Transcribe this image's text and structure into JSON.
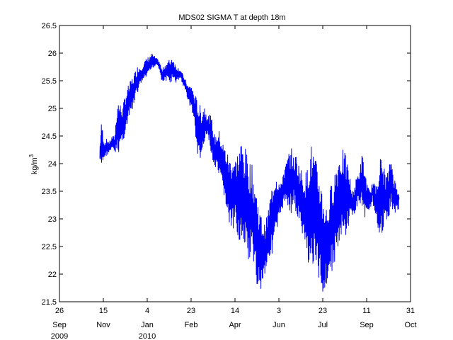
{
  "chart_data": {
    "type": "line",
    "title": "MDS02 SIGMA T at depth 18m",
    "ylabel_base": "kg/m",
    "ylabel_sup": "3",
    "xlabel": "",
    "ylim": [
      21.5,
      26.5
    ],
    "xlim": [
      "2009-09-26",
      "2010-10-31"
    ],
    "yticks": [
      21.5,
      22,
      22.5,
      23,
      23.5,
      24,
      24.5,
      25,
      25.5,
      26,
      26.5
    ],
    "ytick_labels": [
      "21.5",
      "22",
      "22.5",
      "23",
      "23.5",
      "24",
      "24.5",
      "25",
      "25.5",
      "26",
      "26.5"
    ],
    "xticks": [
      {
        "date": "2009-09-26",
        "day": "26",
        "month": "Sep",
        "year": "2009"
      },
      {
        "date": "2009-11-15",
        "day": "15",
        "month": "Nov",
        "year": ""
      },
      {
        "date": "2010-01-04",
        "day": "4",
        "month": "Jan",
        "year": "2010"
      },
      {
        "date": "2010-02-23",
        "day": "23",
        "month": "Feb",
        "year": ""
      },
      {
        "date": "2010-04-14",
        "day": "14",
        "month": "Apr",
        "year": ""
      },
      {
        "date": "2010-06-03",
        "day": "3",
        "month": "Jun",
        "year": ""
      },
      {
        "date": "2010-07-23",
        "day": "23",
        "month": "Jul",
        "year": ""
      },
      {
        "date": "2010-09-11",
        "day": "11",
        "month": "Sep",
        "year": ""
      },
      {
        "date": "2010-10-31",
        "day": "31",
        "month": "Oct",
        "year": ""
      }
    ],
    "grid": false,
    "legend": "none",
    "series_color": "#0000ff",
    "series": [
      {
        "x": [
          "2009-11-11",
          "2009-11-13",
          "2009-11-16",
          "2009-11-19",
          "2009-11-22",
          "2009-11-25",
          "2009-11-28",
          "2009-12-01",
          "2009-12-04",
          "2009-12-07",
          "2009-12-10",
          "2009-12-13",
          "2009-12-16",
          "2009-12-19",
          "2009-12-22",
          "2009-12-25",
          "2009-12-28",
          "2009-12-31",
          "2010-01-03",
          "2010-01-06",
          "2010-01-09",
          "2010-01-12",
          "2010-01-15",
          "2010-01-18",
          "2010-01-21",
          "2010-01-24",
          "2010-01-27",
          "2010-01-30",
          "2010-02-02",
          "2010-02-05",
          "2010-02-08",
          "2010-02-11",
          "2010-02-14",
          "2010-02-17",
          "2010-02-20",
          "2010-02-23",
          "2010-02-26",
          "2010-03-01",
          "2010-03-04",
          "2010-03-07",
          "2010-03-10",
          "2010-03-13",
          "2010-03-16",
          "2010-03-19",
          "2010-03-22",
          "2010-03-25",
          "2010-03-28",
          "2010-03-31",
          "2010-04-03",
          "2010-04-06",
          "2010-04-09",
          "2010-04-12",
          "2010-04-15",
          "2010-04-18",
          "2010-04-21",
          "2010-04-24",
          "2010-04-27",
          "2010-04-30",
          "2010-05-03",
          "2010-05-06",
          "2010-05-09",
          "2010-05-12",
          "2010-05-15",
          "2010-05-18",
          "2010-05-21",
          "2010-05-24",
          "2010-05-27",
          "2010-05-30",
          "2010-06-02",
          "2010-06-05",
          "2010-06-08",
          "2010-06-11",
          "2010-06-14",
          "2010-06-17",
          "2010-06-20",
          "2010-06-23",
          "2010-06-26",
          "2010-06-29",
          "2010-07-02",
          "2010-07-05",
          "2010-07-08",
          "2010-07-11",
          "2010-07-14",
          "2010-07-17",
          "2010-07-20",
          "2010-07-23",
          "2010-07-26",
          "2010-07-29",
          "2010-08-01",
          "2010-08-04",
          "2010-08-07",
          "2010-08-10",
          "2010-08-13",
          "2010-08-16",
          "2010-08-19",
          "2010-08-22",
          "2010-08-25",
          "2010-08-28",
          "2010-08-31",
          "2010-09-03",
          "2010-09-06",
          "2010-09-09",
          "2010-09-12",
          "2010-09-15",
          "2010-09-18",
          "2010-09-21",
          "2010-09-24",
          "2010-09-27",
          "2010-09-30",
          "2010-10-03",
          "2010-10-06",
          "2010-10-09",
          "2010-10-12",
          "2010-10-15",
          "2010-10-18"
        ],
        "min": [
          24.05,
          23.9,
          24.1,
          24.15,
          24.2,
          24.25,
          24.2,
          24.1,
          24.3,
          24.4,
          24.5,
          24.7,
          24.9,
          25.0,
          25.2,
          25.3,
          25.45,
          25.5,
          25.55,
          25.6,
          25.7,
          25.75,
          25.8,
          25.7,
          25.45,
          25.5,
          25.5,
          25.45,
          25.5,
          25.45,
          25.5,
          25.55,
          25.4,
          25.3,
          25.1,
          25.0,
          24.8,
          24.3,
          24.0,
          24.1,
          24.3,
          24.5,
          24.4,
          24.0,
          23.9,
          23.8,
          23.6,
          23.5,
          23.3,
          22.9,
          22.8,
          22.7,
          22.9,
          22.6,
          22.5,
          22.2,
          22.4,
          22.1,
          22.3,
          21.9,
          21.8,
          21.65,
          21.8,
          22.0,
          22.2,
          22.3,
          22.4,
          22.6,
          22.8,
          23.1,
          23.2,
          23.3,
          23.2,
          23.1,
          23.3,
          23.0,
          22.9,
          22.7,
          22.5,
          22.3,
          22.1,
          22.0,
          22.2,
          21.9,
          21.8,
          21.6,
          21.7,
          21.9,
          22.0,
          22.1,
          22.3,
          22.4,
          22.5,
          22.6,
          22.7,
          22.9,
          23.1,
          23.0,
          23.2,
          23.3,
          23.2,
          23.0,
          23.1,
          23.2,
          23.3,
          22.9,
          22.8,
          22.7,
          22.8,
          22.9,
          23.0,
          23.2,
          23.1,
          23.1,
          23.2
        ],
        "max": [
          24.3,
          24.8,
          24.4,
          24.45,
          24.4,
          24.5,
          24.5,
          25.2,
          25.1,
          25.0,
          25.3,
          25.4,
          25.5,
          25.6,
          25.7,
          25.8,
          25.75,
          25.85,
          25.9,
          25.95,
          26.0,
          25.95,
          25.9,
          25.85,
          25.7,
          25.8,
          25.85,
          25.9,
          25.95,
          25.8,
          25.75,
          25.7,
          25.6,
          25.5,
          25.4,
          25.45,
          25.3,
          25.2,
          25.1,
          25.0,
          25.1,
          24.9,
          24.9,
          24.8,
          24.5,
          24.6,
          24.6,
          24.4,
          24.3,
          24.2,
          24.1,
          24.2,
          24.1,
          24.3,
          24.45,
          24.4,
          24.2,
          24.1,
          24.0,
          23.8,
          23.5,
          23.2,
          23.0,
          22.9,
          23.1,
          23.4,
          23.7,
          23.9,
          23.8,
          23.6,
          23.9,
          24.0,
          24.2,
          24.3,
          24.1,
          24.2,
          24.0,
          23.9,
          23.8,
          23.9,
          24.3,
          24.4,
          24.1,
          24.0,
          23.8,
          23.5,
          23.3,
          23.2,
          23.6,
          23.8,
          24.0,
          24.2,
          24.3,
          24.25,
          24.1,
          23.9,
          23.5,
          23.6,
          23.8,
          23.9,
          24.2,
          23.9,
          23.6,
          23.5,
          23.7,
          23.6,
          23.9,
          24.15,
          24.0,
          23.8,
          23.9,
          24.15,
          23.8,
          23.6,
          23.5
        ]
      }
    ]
  }
}
